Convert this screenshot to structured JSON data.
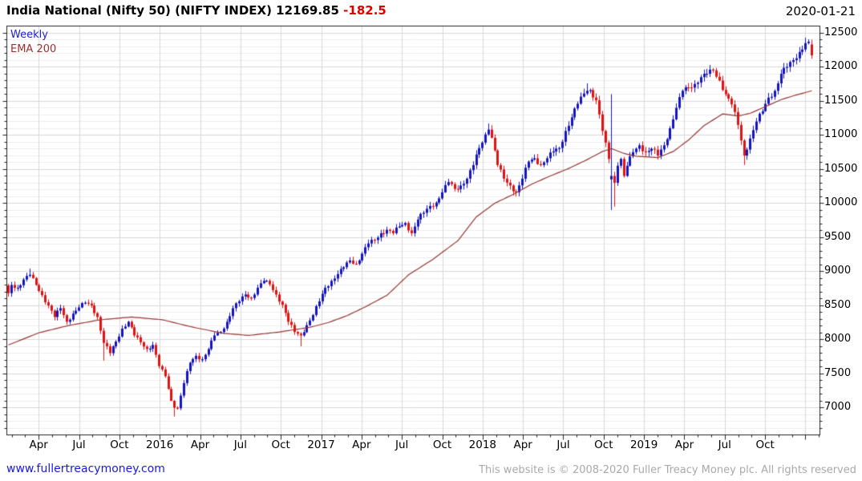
{
  "header": {
    "title": "India National (Nifty 50) (NIFTY INDEX) 12169.85",
    "change": "-182.5",
    "date": "2020-01-21"
  },
  "legend": {
    "timeframe": "Weekly",
    "overlay": "EMA 200"
  },
  "footer": {
    "link": "www.fullertreacymoney.com",
    "copyright": "This website is © 2008-2020 Fuller Treacy Money plc. All rights reserved"
  },
  "colors": {
    "up": "#1515c0",
    "down": "#e01212",
    "ema": "#993333",
    "grid_minor": "#ededed",
    "grid_major": "#d7d7d7",
    "grid_vert": "#d9d9d9",
    "frame": "#222222",
    "change_text": "#e00000"
  },
  "chart_data": {
    "type": "candlestick",
    "instrument": "India National (Nifty 50) (NIFTY INDEX)",
    "timeframe": "Weekly",
    "overlay": "EMA 200",
    "last_close": 12169.85,
    "change": -182.5,
    "as_of": "2020-01-21",
    "y_axis": {
      "tick_values": [
        12500,
        12000,
        11500,
        11000,
        10500,
        10000,
        9500,
        9000,
        8500,
        8000,
        7500,
        7000
      ],
      "minor_step": 100,
      "range_shown": [
        6600,
        12600
      ]
    },
    "x_axis": {
      "labels": [
        "Apr",
        "Jul",
        "Oct",
        "2016",
        "Apr",
        "Jul",
        "Oct",
        "2017",
        "Apr",
        "Jul",
        "Oct",
        "2018",
        "Apr",
        "Jul",
        "Oct",
        "2019",
        "Apr",
        "Jul",
        "Oct"
      ],
      "start": "2015-01",
      "end": "2020-01-21"
    },
    "weeks": 262,
    "close_anchors": [
      [
        0,
        8680
      ],
      [
        1,
        8800
      ],
      [
        3,
        8760
      ],
      [
        5,
        8880
      ],
      [
        7,
        8950
      ],
      [
        9,
        8800
      ],
      [
        11,
        8650
      ],
      [
        13,
        8500
      ],
      [
        15,
        8330
      ],
      [
        17,
        8460
      ],
      [
        19,
        8260
      ],
      [
        21,
        8380
      ],
      [
        23,
        8470
      ],
      [
        25,
        8540
      ],
      [
        27,
        8500
      ],
      [
        29,
        8330
      ],
      [
        31,
        7950
      ],
      [
        33,
        7800
      ],
      [
        35,
        7970
      ],
      [
        37,
        8160
      ],
      [
        39,
        8260
      ],
      [
        41,
        8060
      ],
      [
        43,
        7960
      ],
      [
        45,
        7860
      ],
      [
        47,
        7920
      ],
      [
        49,
        7610
      ],
      [
        51,
        7460
      ],
      [
        53,
        7100
      ],
      [
        54,
        7000
      ],
      [
        55,
        6990
      ],
      [
        57,
        7360
      ],
      [
        59,
        7660
      ],
      [
        61,
        7760
      ],
      [
        63,
        7710
      ],
      [
        65,
        7860
      ],
      [
        67,
        8060
      ],
      [
        69,
        8110
      ],
      [
        71,
        8260
      ],
      [
        73,
        8460
      ],
      [
        75,
        8560
      ],
      [
        77,
        8660
      ],
      [
        79,
        8610
      ],
      [
        81,
        8760
      ],
      [
        83,
        8860
      ],
      [
        85,
        8810
      ],
      [
        87,
        8660
      ],
      [
        89,
        8510
      ],
      [
        91,
        8260
      ],
      [
        93,
        8110
      ],
      [
        95,
        8060
      ],
      [
        97,
        8210
      ],
      [
        99,
        8360
      ],
      [
        101,
        8560
      ],
      [
        103,
        8760
      ],
      [
        105,
        8860
      ],
      [
        107,
        8960
      ],
      [
        109,
        9060
      ],
      [
        111,
        9160
      ],
      [
        113,
        9110
      ],
      [
        115,
        9260
      ],
      [
        117,
        9410
      ],
      [
        119,
        9460
      ],
      [
        121,
        9560
      ],
      [
        123,
        9610
      ],
      [
        125,
        9560
      ],
      [
        127,
        9660
      ],
      [
        129,
        9710
      ],
      [
        131,
        9560
      ],
      [
        133,
        9760
      ],
      [
        135,
        9860
      ],
      [
        137,
        9960
      ],
      [
        139,
        10010
      ],
      [
        141,
        10160
      ],
      [
        143,
        10310
      ],
      [
        145,
        10210
      ],
      [
        147,
        10260
      ],
      [
        149,
        10360
      ],
      [
        151,
        10560
      ],
      [
        153,
        10810
      ],
      [
        155,
        11010
      ],
      [
        156,
        11080
      ],
      [
        157,
        10960
      ],
      [
        159,
        10560
      ],
      [
        161,
        10360
      ],
      [
        163,
        10260
      ],
      [
        165,
        10160
      ],
      [
        167,
        10360
      ],
      [
        169,
        10610
      ],
      [
        171,
        10660
      ],
      [
        173,
        10560
      ],
      [
        175,
        10660
      ],
      [
        177,
        10760
      ],
      [
        179,
        10810
      ],
      [
        181,
        11060
      ],
      [
        183,
        11260
      ],
      [
        185,
        11460
      ],
      [
        187,
        11610
      ],
      [
        188,
        11650
      ],
      [
        189,
        11660
      ],
      [
        191,
        11510
      ],
      [
        193,
        11060
      ],
      [
        195,
        10650
      ],
      [
        197,
        10300
      ],
      [
        198,
        10550
      ],
      [
        199,
        10650
      ],
      [
        200,
        10400
      ],
      [
        201,
        10550
      ],
      [
        203,
        10750
      ],
      [
        205,
        10850
      ],
      [
        207,
        10750
      ],
      [
        209,
        10800
      ],
      [
        211,
        10700
      ],
      [
        213,
        10850
      ],
      [
        215,
        11100
      ],
      [
        217,
        11400
      ],
      [
        219,
        11650
      ],
      [
        221,
        11700
      ],
      [
        223,
        11750
      ],
      [
        225,
        11850
      ],
      [
        227,
        11900
      ],
      [
        229,
        11950
      ],
      [
        231,
        11800
      ],
      [
        233,
        11600
      ],
      [
        235,
        11450
      ],
      [
        237,
        11150
      ],
      [
        239,
        10700
      ],
      [
        241,
        10950
      ],
      [
        243,
        11200
      ],
      [
        245,
        11350
      ],
      [
        247,
        11550
      ],
      [
        249,
        11650
      ],
      [
        251,
        11900
      ],
      [
        253,
        12000
      ],
      [
        255,
        12100
      ],
      [
        257,
        12220
      ],
      [
        259,
        12350
      ],
      [
        260,
        12370
      ],
      [
        261,
        12169.85
      ]
    ],
    "ema_anchors": [
      [
        0,
        7920
      ],
      [
        10,
        8100
      ],
      [
        20,
        8210
      ],
      [
        30,
        8290
      ],
      [
        40,
        8330
      ],
      [
        50,
        8290
      ],
      [
        60,
        8180
      ],
      [
        70,
        8090
      ],
      [
        78,
        8060
      ],
      [
        88,
        8110
      ],
      [
        98,
        8180
      ],
      [
        104,
        8250
      ],
      [
        110,
        8350
      ],
      [
        116,
        8480
      ],
      [
        123,
        8650
      ],
      [
        130,
        8950
      ],
      [
        138,
        9180
      ],
      [
        146,
        9450
      ],
      [
        152,
        9800
      ],
      [
        158,
        10000
      ],
      [
        164,
        10130
      ],
      [
        170,
        10280
      ],
      [
        176,
        10400
      ],
      [
        182,
        10510
      ],
      [
        188,
        10640
      ],
      [
        193,
        10760
      ],
      [
        196,
        10800
      ],
      [
        200,
        10730
      ],
      [
        204,
        10690
      ],
      [
        211,
        10670
      ],
      [
        216,
        10760
      ],
      [
        221,
        10930
      ],
      [
        226,
        11140
      ],
      [
        232,
        11310
      ],
      [
        237,
        11280
      ],
      [
        241,
        11320
      ],
      [
        246,
        11420
      ],
      [
        251,
        11520
      ],
      [
        256,
        11590
      ],
      [
        261,
        11650
      ]
    ],
    "overrides": {
      "7": {
        "high": 9040
      },
      "31": {
        "low": 7690
      },
      "54": {
        "low": 6870
      },
      "95": {
        "low": 7900
      },
      "156": {
        "high": 11170
      },
      "188": {
        "high": 11760
      },
      "196": {
        "open": 10350,
        "close": 10400,
        "high": 11600,
        "low": 9900
      },
      "197": {
        "low": 9950
      },
      "228": {
        "high": 12030
      },
      "239": {
        "low": 10560
      },
      "259": {
        "high": 12430
      },
      "261": {
        "open": 12330,
        "high": 12400,
        "low": 12120,
        "close": 12169.85
      }
    }
  }
}
